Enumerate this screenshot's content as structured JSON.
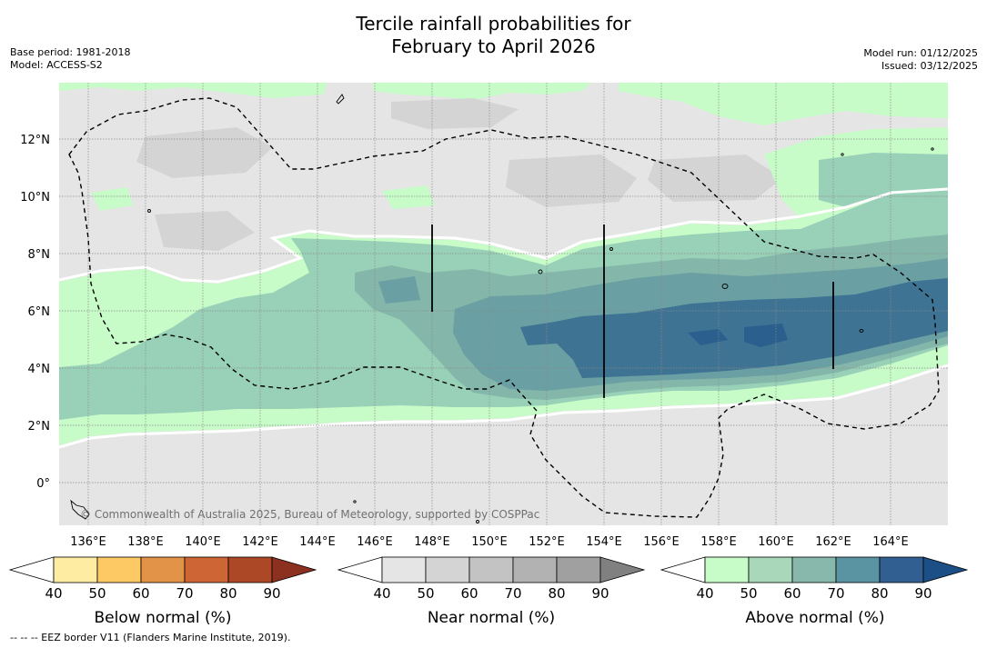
{
  "title": {
    "line1": "Tercile rainfall probabilities for",
    "line2": "February to April 2026"
  },
  "meta": {
    "base_period": "Base period: 1981-2018",
    "model": "Model: ACCESS-S2",
    "model_run": "Model run: 01/12/2025",
    "issued": "Issued: 03/12/2025"
  },
  "map": {
    "lat_labels": [
      "12°N",
      "10°N",
      "8°N",
      "6°N",
      "4°N",
      "2°N",
      "0°"
    ],
    "lon_labels": [
      "136°E",
      "138°E",
      "140°E",
      "142°E",
      "144°E",
      "146°E",
      "148°E",
      "150°E",
      "152°E",
      "154°E",
      "156°E",
      "158°E",
      "160°E",
      "162°E",
      "164°E"
    ],
    "copyright": "© Commonwealth of Australia 2025, Bureau of Meteorology, supported by COSPPac",
    "colors": {
      "near_40": "#e5e5e5",
      "near_50": "#d4d4d4",
      "above_40": "#c7fbc7",
      "above_50": "#98d0b8",
      "above_60": "#84b6a9",
      "above_70": "#6a9fa3",
      "above_80": "#3e7394",
      "above_90": "#2b5f8e"
    }
  },
  "colorbars": [
    {
      "title": "Below normal (%)",
      "ticks": [
        "40",
        "50",
        "60",
        "70",
        "80",
        "90"
      ],
      "colors": [
        "#fdeca2",
        "#fdc964",
        "#e29347",
        "#cd6534",
        "#ad4826",
        "#8c3020"
      ]
    },
    {
      "title": "Near normal (%)",
      "ticks": [
        "40",
        "50",
        "60",
        "70",
        "80",
        "90"
      ],
      "colors": [
        "#e5e5e5",
        "#d4d4d4",
        "#c3c3c3",
        "#b2b2b2",
        "#a0a0a0",
        "#808080"
      ]
    },
    {
      "title": "Above normal (%)",
      "ticks": [
        "40",
        "50",
        "60",
        "70",
        "80",
        "90"
      ],
      "colors": [
        "#c7fbc7",
        "#a8d8b9",
        "#88b7ab",
        "#5a93a2",
        "#315f92",
        "#1b4f86"
      ]
    }
  ],
  "footnote": "--  --  -- EEZ border V11 (Flanders Marine Institute, 2019)."
}
